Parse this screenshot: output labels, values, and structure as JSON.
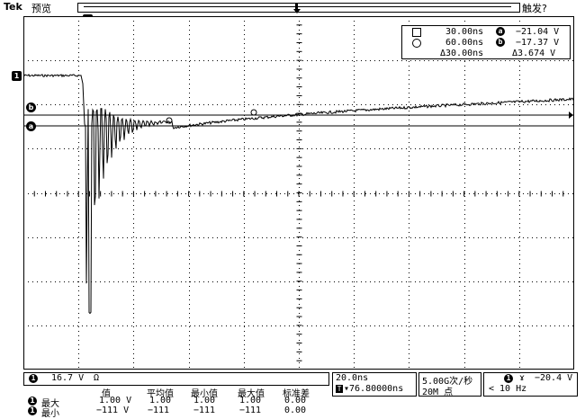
{
  "header": {
    "brand": "Tek",
    "status": "预览",
    "trigger_status": "触发?"
  },
  "markers": {
    "trigger_position": "T",
    "ch1_ground": "1",
    "cursor_b": "b",
    "cursor_a": "a"
  },
  "cursors": {
    "t1": "30.00ns",
    "t2": "60.00ns",
    "dt": "Δ30.00ns",
    "va_label": "a",
    "va": "−21.04 V",
    "vb_label": "b",
    "vb": "−17.37 V",
    "dv": "Δ3.674 V"
  },
  "channel": {
    "number": "1",
    "scale": "16.7 V",
    "coupling": "Ω"
  },
  "timebase": {
    "scale": "20.0ns",
    "position": "▾76.80000ns",
    "trigger_icon": "T"
  },
  "acquisition": {
    "rate": "5.00G次/秒",
    "points": "20M 点"
  },
  "trigger": {
    "channel": "1",
    "slope": "ɤ",
    "level": "−20.4 V",
    "freq": "< 10 Hz"
  },
  "measurements": {
    "headers": [
      "值",
      "平均值",
      "最小值",
      "最大值",
      "标准差"
    ],
    "rows": [
      {
        "channel": "1",
        "name": "最大",
        "values": [
          "1.00 V",
          "1.00",
          "1.00",
          "1.00",
          "0.00"
        ]
      },
      {
        "channel": "1",
        "name": "最小",
        "values": [
          "−111 V",
          "−111",
          "−111",
          "−111",
          "0.00"
        ]
      }
    ]
  },
  "colors": {
    "background": "#ffffff",
    "trace": "#000000",
    "grid": "#000000"
  }
}
